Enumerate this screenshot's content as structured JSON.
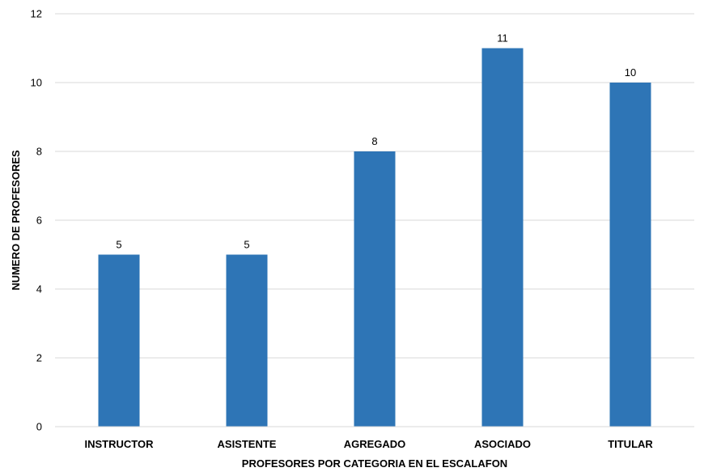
{
  "chart_data": {
    "type": "bar",
    "title": "",
    "xlabel": "PROFESORES POR CATEGORIA EN EL ESCALAFON",
    "ylabel": "NUMERO DE PROFESORES",
    "categories": [
      "INSTRUCTOR",
      "ASISTENTE",
      "AGREGADO",
      "ASOCIADO",
      "TITULAR"
    ],
    "values": [
      5,
      5,
      8,
      11,
      10
    ],
    "ylim": [
      0,
      12
    ],
    "yticks": [
      0,
      2,
      4,
      6,
      8,
      10,
      12
    ],
    "grid": true,
    "legend": "none",
    "bar_color": "#2e75b6",
    "data_labels": true
  }
}
